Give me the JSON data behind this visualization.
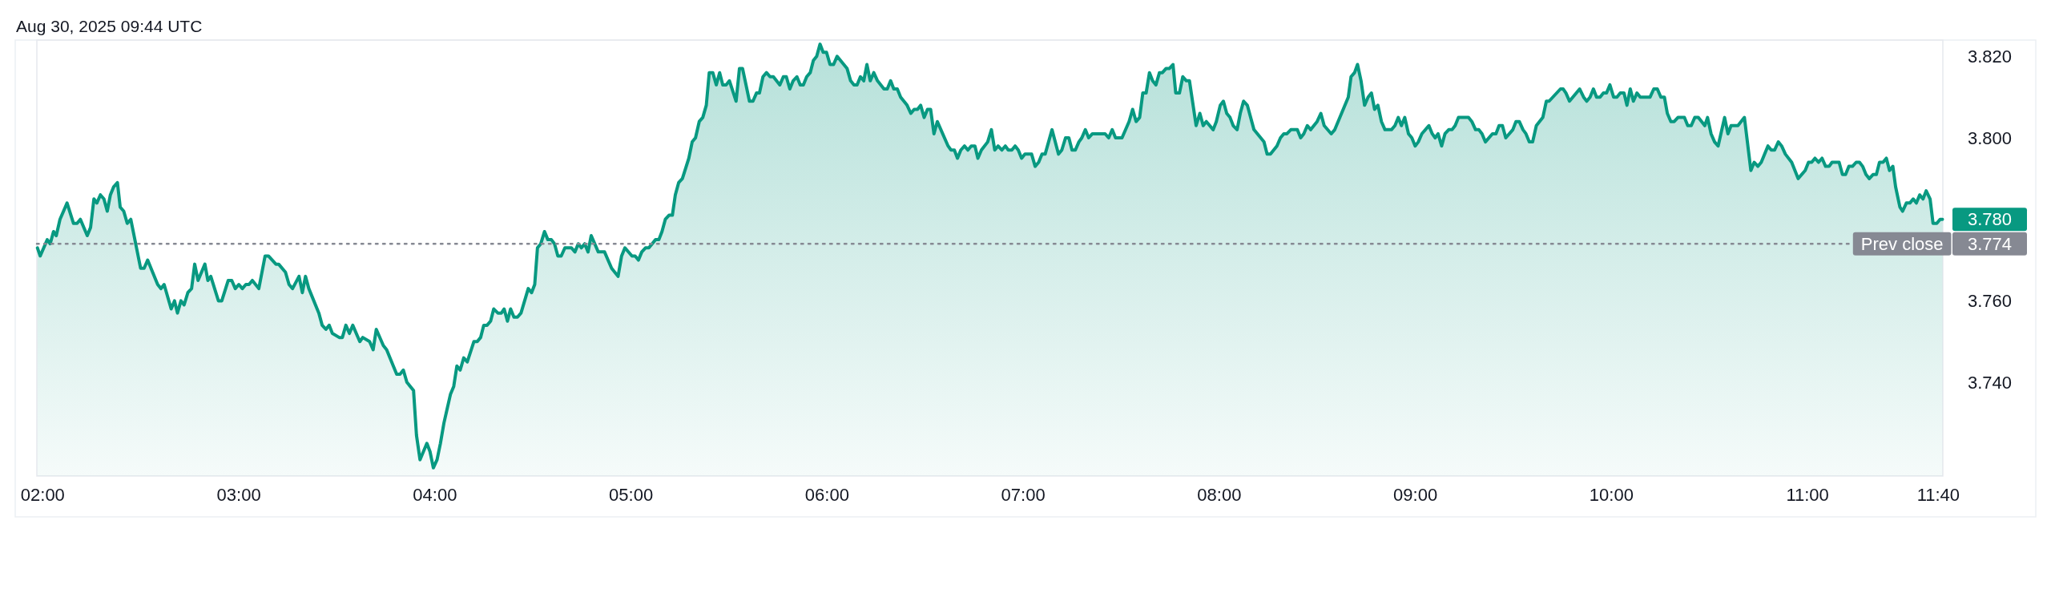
{
  "chart_data": {
    "type": "area",
    "color": "#089981",
    "annotations": [
      "Aug 30, 2025 09:44 UTC"
    ],
    "xlim": [
      1.97,
      11.69
    ],
    "ylim": [
      3.717,
      3.824
    ],
    "xticks": [
      {
        "value": 2,
        "label": "02:00"
      },
      {
        "value": 3,
        "label": "03:00"
      },
      {
        "value": 4,
        "label": "04:00"
      },
      {
        "value": 5,
        "label": "05:00"
      },
      {
        "value": 6,
        "label": "06:00"
      },
      {
        "value": 7,
        "label": "07:00"
      },
      {
        "value": 8,
        "label": "08:00"
      },
      {
        "value": 9,
        "label": "09:00"
      },
      {
        "value": 10,
        "label": "10:00"
      },
      {
        "value": 11,
        "label": "11:00"
      },
      {
        "value": 11.667,
        "label": "11:40"
      }
    ],
    "yticks": [
      {
        "value": 3.74,
        "label": "3.740"
      },
      {
        "value": 3.76,
        "label": "3.760"
      },
      3.774,
      {
        "value": 3.8,
        "label": "3.800"
      },
      {
        "value": 3.82,
        "label": "3.820"
      }
    ],
    "ref_lines": [
      {
        "axis": "y",
        "value": 3.774,
        "label": "Prev close",
        "color": "#868993",
        "line_style": "dotted"
      }
    ],
    "x": [
      1.973,
      1.987,
      2.023,
      2.038,
      2.055,
      2.069,
      2.088,
      2.124,
      2.157,
      2.175,
      2.192,
      2.227,
      2.244,
      2.261,
      2.276,
      2.294,
      2.312,
      2.329,
      2.345,
      2.362,
      2.381,
      2.395,
      2.413,
      2.431,
      2.449,
      2.499,
      2.517,
      2.535,
      2.586,
      2.603,
      2.619,
      2.655,
      2.672,
      2.687,
      2.705,
      2.721,
      2.74,
      2.759,
      2.775,
      2.792,
      2.827,
      2.842,
      2.857,
      2.896,
      2.913,
      2.946,
      2.964,
      2.982,
      3.0,
      3.018,
      3.036,
      3.052,
      3.069,
      3.102,
      3.134,
      3.151,
      3.189,
      3.203,
      3.238,
      3.256,
      3.274,
      3.307,
      3.324,
      3.34,
      3.357,
      3.408,
      3.425,
      3.444,
      3.461,
      3.477,
      3.512,
      3.528,
      3.546,
      3.564,
      3.581,
      3.617,
      3.632,
      3.667,
      3.685,
      3.701,
      3.737,
      3.754,
      3.805,
      3.822,
      3.839,
      3.857,
      3.891,
      3.906,
      3.924,
      3.959,
      3.975,
      3.992,
      4.011,
      4.028,
      4.046,
      4.079,
      4.096,
      4.112,
      4.129,
      4.147,
      4.165,
      4.199,
      4.216,
      4.233,
      4.249,
      4.266,
      4.284,
      4.3,
      4.321,
      4.339,
      4.353,
      4.37,
      4.386,
      4.403,
      4.421,
      4.439,
      4.476,
      4.493,
      4.509,
      4.523,
      4.54,
      4.559,
      4.576,
      4.594,
      4.61,
      4.627,
      4.644,
      4.663,
      4.696,
      4.714,
      4.731,
      4.747,
      4.764,
      4.781,
      4.797,
      4.833,
      4.865,
      4.901,
      4.934,
      4.952,
      4.969,
      5.005,
      5.021,
      5.038,
      5.055,
      5.074,
      5.091,
      5.125,
      5.142,
      5.158,
      5.175,
      5.194,
      5.211,
      5.226,
      5.243,
      5.262,
      5.295,
      5.312,
      5.329,
      5.348,
      5.366,
      5.384,
      5.399,
      5.417,
      5.435,
      5.452,
      5.468,
      5.485,
      5.502,
      5.536,
      5.553,
      5.569,
      5.604,
      5.622,
      5.64,
      5.655,
      5.673,
      5.691,
      5.709,
      5.726,
      5.759,
      5.777,
      5.792,
      5.81,
      5.827,
      5.846,
      5.863,
      5.879,
      5.896,
      5.914,
      5.93,
      5.947,
      5.964,
      5.98,
      5.997,
      6.015,
      6.033,
      6.051,
      6.102,
      6.12,
      6.137,
      6.153,
      6.17,
      6.187,
      6.203,
      6.22,
      6.238,
      6.257,
      6.29,
      6.307,
      6.324,
      6.34,
      6.358,
      6.375,
      6.408,
      6.427,
      6.444,
      6.461,
      6.477,
      6.495,
      6.512,
      6.528,
      6.545,
      6.562,
      6.617,
      6.632,
      6.649,
      6.665,
      6.682,
      6.701,
      6.718,
      6.735,
      6.754,
      6.769,
      6.787,
      6.819,
      6.838,
      6.855,
      6.872,
      6.891,
      6.909,
      6.924,
      6.942,
      6.959,
      6.975,
      6.992,
      7.009,
      7.043,
      7.061,
      7.079,
      7.096,
      7.112,
      7.147,
      7.18,
      7.197,
      7.216,
      7.233,
      7.249,
      7.266,
      7.284,
      7.299,
      7.317,
      7.334,
      7.353,
      7.418,
      7.436,
      7.454,
      7.471,
      7.504,
      7.54,
      7.558,
      7.576,
      7.594,
      7.61,
      7.627,
      7.644,
      7.66,
      7.677,
      7.695,
      7.71,
      7.728,
      7.745,
      7.764,
      7.778,
      7.797,
      7.814,
      7.832,
      7.848,
      7.882,
      7.901,
      7.918,
      7.934,
      7.969,
      7.985,
      8.005,
      8.021,
      8.038,
      8.055,
      8.071,
      8.091,
      8.107,
      8.124,
      8.143,
      8.177,
      8.228,
      8.244,
      8.261,
      8.294,
      8.312,
      8.329,
      8.345,
      8.365,
      8.398,
      8.415,
      8.431,
      8.449,
      8.466,
      8.499,
      8.518,
      8.535,
      8.571,
      8.589,
      8.658,
      8.672,
      8.69,
      8.705,
      8.723,
      8.741,
      8.759,
      8.776,
      8.792,
      8.809,
      8.827,
      8.845,
      8.878,
      8.896,
      8.913,
      8.929,
      8.946,
      8.965,
      8.982,
      8.999,
      9.015,
      9.033,
      9.069,
      9.086,
      9.101,
      9.116,
      9.134,
      9.151,
      9.17,
      9.187,
      9.203,
      9.22,
      9.271,
      9.288,
      9.307,
      9.324,
      9.34,
      9.357,
      9.393,
      9.411,
      9.427,
      9.444,
      9.461,
      9.497,
      9.513,
      9.53,
      9.549,
      9.564,
      9.581,
      9.598,
      9.617,
      9.65,
      9.668,
      9.682,
      9.74,
      9.754,
      9.768,
      9.786,
      9.838,
      9.858,
      9.874,
      9.891,
      9.908,
      9.924,
      9.942,
      9.959,
      9.975,
      9.992,
      10.011,
      10.028,
      10.045,
      10.064,
      10.079,
      10.096,
      10.112,
      10.13,
      10.147,
      10.197,
      10.216,
      10.234,
      10.252,
      10.27,
      10.285,
      10.303,
      10.32,
      10.339,
      10.372,
      10.389,
      10.407,
      10.425,
      10.443,
      10.476,
      10.49,
      10.508,
      10.526,
      10.544,
      10.577,
      10.594,
      10.61,
      10.645,
      10.678,
      10.711,
      10.728,
      10.747,
      10.764,
      10.798,
      10.815,
      10.832,
      10.851,
      10.868,
      10.887,
      10.919,
      10.952,
      10.988,
      11.005,
      11.021,
      11.038,
      11.056,
      11.074,
      11.092,
      11.11,
      11.125,
      11.161,
      11.178,
      11.194,
      11.211,
      11.229,
      11.248,
      11.265,
      11.281,
      11.298,
      11.315,
      11.334,
      11.351,
      11.367,
      11.385,
      11.402,
      11.418,
      11.435,
      11.449,
      11.471,
      11.485,
      11.504,
      11.522,
      11.539,
      11.555,
      11.572,
      11.589,
      11.605,
      11.625,
      11.64,
      11.659,
      11.676,
      11.688
    ],
    "values": [
      3.773,
      3.771,
      3.775,
      3.774,
      3.777,
      3.776,
      3.78,
      3.784,
      3.779,
      3.779,
      3.78,
      3.776,
      3.778,
      3.785,
      3.784,
      3.786,
      3.785,
      3.782,
      3.786,
      3.788,
      3.789,
      3.783,
      3.782,
      3.779,
      3.78,
      3.768,
      3.768,
      3.77,
      3.764,
      3.763,
      3.764,
      3.758,
      3.76,
      3.757,
      3.76,
      3.759,
      3.762,
      3.763,
      3.769,
      3.765,
      3.769,
      3.765,
      3.766,
      3.76,
      3.76,
      3.765,
      3.765,
      3.763,
      3.764,
      3.763,
      3.764,
      3.764,
      3.765,
      3.763,
      3.771,
      3.771,
      3.769,
      3.769,
      3.767,
      3.764,
      3.763,
      3.766,
      3.762,
      3.766,
      3.763,
      3.757,
      3.754,
      3.753,
      3.754,
      3.752,
      3.751,
      3.751,
      3.754,
      3.752,
      3.754,
      3.75,
      3.751,
      3.75,
      3.748,
      3.753,
      3.749,
      3.748,
      3.742,
      3.742,
      3.743,
      3.74,
      3.738,
      3.727,
      3.721,
      3.725,
      3.723,
      3.719,
      3.721,
      3.725,
      3.73,
      3.737,
      3.739,
      3.744,
      3.743,
      3.746,
      3.745,
      3.75,
      3.75,
      3.751,
      3.754,
      3.754,
      3.755,
      3.758,
      3.757,
      3.757,
      3.758,
      3.755,
      3.758,
      3.756,
      3.756,
      3.757,
      3.763,
      3.762,
      3.764,
      3.773,
      3.774,
      3.777,
      3.775,
      3.775,
      3.774,
      3.771,
      3.771,
      3.773,
      3.773,
      3.772,
      3.774,
      3.773,
      3.774,
      3.772,
      3.776,
      3.772,
      3.772,
      3.768,
      3.766,
      3.771,
      3.773,
      3.771,
      3.771,
      3.77,
      3.772,
      3.773,
      3.773,
      3.775,
      3.775,
      3.777,
      3.78,
      3.781,
      3.781,
      3.786,
      3.789,
      3.79,
      3.795,
      3.799,
      3.8,
      3.804,
      3.805,
      3.808,
      3.816,
      3.816,
      3.813,
      3.816,
      3.813,
      3.813,
      3.814,
      3.809,
      3.817,
      3.817,
      3.809,
      3.809,
      3.811,
      3.811,
      3.815,
      3.816,
      3.815,
      3.815,
      3.813,
      3.815,
      3.815,
      3.812,
      3.814,
      3.815,
      3.813,
      3.813,
      3.815,
      3.816,
      3.819,
      3.82,
      3.823,
      3.821,
      3.821,
      3.818,
      3.818,
      3.82,
      3.817,
      3.814,
      3.813,
      3.813,
      3.815,
      3.814,
      3.818,
      3.814,
      3.816,
      3.814,
      3.812,
      3.812,
      3.814,
      3.812,
      3.812,
      3.81,
      3.808,
      3.806,
      3.807,
      3.807,
      3.808,
      3.805,
      3.807,
      3.807,
      3.801,
      3.804,
      3.798,
      3.797,
      3.797,
      3.795,
      3.797,
      3.798,
      3.797,
      3.798,
      3.798,
      3.795,
      3.797,
      3.799,
      3.802,
      3.797,
      3.798,
      3.797,
      3.798,
      3.797,
      3.797,
      3.798,
      3.797,
      3.795,
      3.796,
      3.796,
      3.793,
      3.794,
      3.796,
      3.796,
      3.802,
      3.796,
      3.797,
      3.8,
      3.8,
      3.797,
      3.797,
      3.799,
      3.8,
      3.802,
      3.8,
      3.801,
      3.801,
      3.8,
      3.802,
      3.8,
      3.8,
      3.804,
      3.807,
      3.804,
      3.805,
      3.811,
      3.811,
      3.816,
      3.814,
      3.813,
      3.816,
      3.816,
      3.817,
      3.817,
      3.818,
      3.811,
      3.811,
      3.815,
      3.814,
      3.814,
      3.803,
      3.806,
      3.803,
      3.804,
      3.802,
      3.804,
      3.808,
      3.809,
      3.806,
      3.805,
      3.803,
      3.802,
      3.806,
      3.809,
      3.808,
      3.802,
      3.799,
      3.796,
      3.796,
      3.798,
      3.8,
      3.801,
      3.801,
      3.802,
      3.802,
      3.8,
      3.801,
      3.803,
      3.802,
      3.804,
      3.806,
      3.803,
      3.801,
      3.802,
      3.81,
      3.815,
      3.816,
      3.818,
      3.814,
      3.808,
      3.81,
      3.811,
      3.807,
      3.808,
      3.804,
      3.802,
      3.802,
      3.803,
      3.805,
      3.803,
      3.805,
      3.801,
      3.8,
      3.798,
      3.799,
      3.801,
      3.803,
      3.801,
      3.8,
      3.801,
      3.798,
      3.801,
      3.802,
      3.802,
      3.803,
      3.805,
      3.805,
      3.804,
      3.802,
      3.802,
      3.801,
      3.799,
      3.801,
      3.801,
      3.803,
      3.803,
      3.8,
      3.802,
      3.804,
      3.804,
      3.802,
      3.801,
      3.799,
      3.799,
      3.803,
      3.805,
      3.809,
      3.809,
      3.812,
      3.812,
      3.811,
      3.809,
      3.812,
      3.81,
      3.809,
      3.81,
      3.812,
      3.81,
      3.81,
      3.811,
      3.811,
      3.813,
      3.81,
      3.81,
      3.811,
      3.811,
      3.808,
      3.812,
      3.809,
      3.811,
      3.81,
      3.81,
      3.812,
      3.812,
      3.81,
      3.81,
      3.806,
      3.804,
      3.804,
      3.805,
      3.805,
      3.803,
      3.803,
      3.805,
      3.805,
      3.803,
      3.805,
      3.801,
      3.799,
      3.798,
      3.805,
      3.801,
      3.803,
      3.803,
      3.805,
      3.792,
      3.794,
      3.793,
      3.794,
      3.798,
      3.797,
      3.797,
      3.799,
      3.798,
      3.796,
      3.794,
      3.79,
      3.792,
      3.794,
      3.794,
      3.795,
      3.794,
      3.795,
      3.793,
      3.793,
      3.794,
      3.794,
      3.791,
      3.791,
      3.793,
      3.793,
      3.794,
      3.794,
      3.793,
      3.791,
      3.79,
      3.791,
      3.791,
      3.794,
      3.794,
      3.795,
      3.792,
      3.793,
      3.788,
      3.783,
      3.782,
      3.784,
      3.784,
      3.785,
      3.784,
      3.786,
      3.785,
      3.787,
      3.785,
      3.779,
      3.779,
      3.78,
      3.78
    ],
    "value_labels": [
      null,
      null,
      null,
      null,
      null,
      null,
      null,
      null,
      null,
      null,
      null,
      null,
      null,
      null,
      null,
      null,
      null,
      null,
      null,
      null,
      null,
      null,
      null,
      null,
      null,
      null,
      null,
      null,
      null,
      null,
      null,
      null,
      null,
      null,
      null,
      null,
      null,
      null,
      null,
      null,
      null,
      null,
      null,
      null,
      null,
      null,
      null,
      null,
      null,
      null,
      null,
      null,
      null,
      null,
      null,
      null,
      null,
      null,
      null,
      null,
      null,
      null,
      null,
      null,
      null,
      null,
      null,
      null,
      null,
      null,
      null,
      null,
      null,
      null,
      null,
      null,
      null,
      null,
      null,
      null,
      null,
      null,
      null,
      null,
      null,
      null,
      null,
      null,
      null,
      null,
      null,
      null,
      null,
      null,
      null,
      null,
      null,
      null,
      null,
      null,
      null,
      null,
      null,
      null,
      null,
      null,
      null,
      null,
      null,
      null,
      null,
      null,
      null,
      null,
      null,
      null,
      null,
      null,
      null,
      null,
      null,
      null,
      null,
      null,
      null,
      null,
      null,
      null,
      null,
      null,
      null,
      null,
      null,
      null,
      null,
      null,
      null,
      null,
      null,
      null,
      null,
      null,
      null,
      null,
      null,
      null,
      null,
      null,
      null,
      null,
      null,
      null,
      null,
      null,
      null,
      null,
      null,
      null,
      null,
      null,
      null,
      null,
      null,
      null,
      null,
      null,
      null,
      null,
      null,
      null,
      null,
      null,
      null,
      null,
      null,
      null,
      null,
      null,
      null,
      null,
      null,
      null,
      null,
      null,
      null,
      null,
      null,
      null,
      null,
      null,
      null,
      null,
      null,
      null,
      null,
      null,
      null,
      null,
      null,
      null,
      null,
      null,
      null,
      null,
      null,
      null,
      null,
      null,
      null,
      null,
      null,
      null,
      null,
      null,
      null,
      null,
      null,
      null,
      null,
      null,
      null,
      null,
      null,
      null,
      null,
      null,
      null,
      null,
      null,
      null,
      null,
      null,
      null,
      null,
      null,
      null,
      null,
      null,
      null,
      null,
      null,
      null,
      null,
      null,
      null,
      null,
      null,
      null,
      null,
      null,
      null,
      null,
      null,
      null,
      null,
      null,
      null,
      null,
      null,
      null,
      null,
      null,
      null,
      null,
      null,
      null,
      null,
      null,
      null,
      null,
      null,
      null,
      null,
      null,
      null,
      null,
      null,
      null,
      null,
      null,
      null,
      null,
      null,
      null,
      null,
      null,
      null,
      null,
      null,
      null,
      null,
      null,
      null,
      null,
      null,
      null,
      null,
      null,
      null,
      null,
      null,
      null,
      null,
      null,
      null,
      null,
      null,
      null,
      null,
      null,
      null,
      null,
      null,
      null,
      null,
      null,
      null,
      null,
      null,
      null,
      null,
      null,
      null,
      null,
      null,
      null,
      null,
      null,
      null,
      null,
      null,
      null,
      null,
      null,
      null,
      null,
      null,
      null,
      null,
      null,
      null,
      null,
      null,
      null,
      null,
      null,
      null,
      null,
      null,
      null,
      null,
      null,
      null,
      null,
      null,
      null,
      null,
      null,
      null,
      null,
      null,
      null,
      null,
      null,
      null,
      null,
      null,
      null,
      null,
      null,
      null,
      null,
      null,
      null,
      null,
      null,
      null,
      null,
      null,
      null,
      null,
      null,
      null,
      null,
      null,
      null,
      null,
      null,
      null,
      null,
      null,
      null,
      null,
      null,
      null,
      null,
      null,
      null,
      null,
      null,
      null,
      null,
      null,
      null,
      null,
      null,
      null,
      null,
      null,
      null,
      null,
      null,
      null,
      null,
      null,
      null,
      null,
      null,
      null,
      null,
      null,
      null,
      null,
      null,
      null,
      null,
      null,
      null,
      null,
      null,
      null,
      null,
      null,
      null,
      null,
      null,
      null,
      null,
      null,
      null,
      null,
      null,
      null,
      null,
      null,
      null,
      null,
      null,
      null,
      null,
      null,
      null,
      null,
      null,
      null,
      null,
      null,
      null,
      null,
      null,
      null,
      null,
      null,
      null,
      null,
      null,
      null,
      null,
      null,
      null,
      null,
      null,
      null,
      null,
      null,
      "3.780"
    ]
  }
}
